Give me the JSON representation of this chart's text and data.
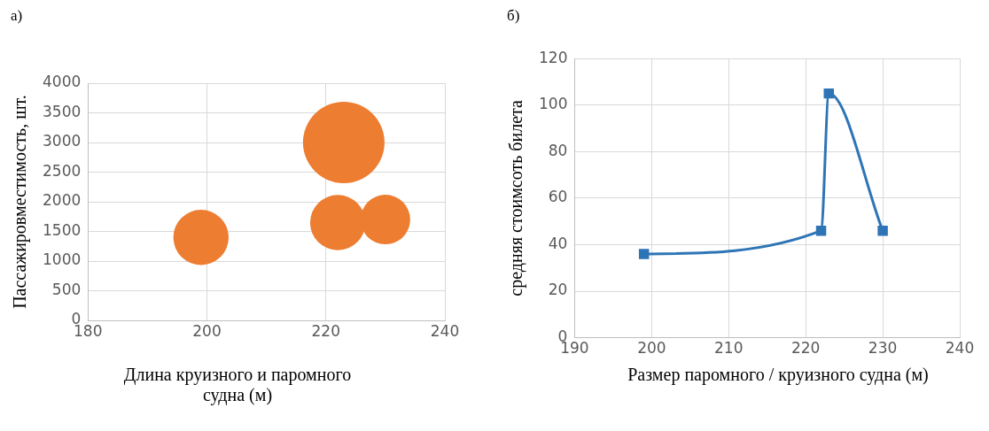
{
  "chart_data": [
    {
      "type": "bubble",
      "annotations": [
        "а)"
      ],
      "xlabel": "Длина круизного и паромного судна (м)",
      "ylabel": "Пассажировместимость, шт.",
      "x": [
        199,
        222,
        223,
        230
      ],
      "series": [
        {
          "color": "#ed7d31",
          "values": [
            1400,
            1650,
            3000,
            1700
          ],
          "sizes": [
            0.46,
            0.46,
            1,
            0.37
          ]
        }
      ],
      "xlim": [
        180,
        240
      ],
      "xticks": [
        180,
        200,
        220,
        240
      ],
      "ylim": [
        0,
        4000
      ],
      "yticks": [
        0,
        500,
        1000,
        1500,
        2000,
        2500,
        3000,
        3500,
        4000
      ],
      "grid": true,
      "legend": false
    },
    {
      "type": "line",
      "annotations": [
        "б)"
      ],
      "xlabel": "Размер паромного / круизного судна (м)",
      "ylabel": "средняя стоимсоть билета",
      "x": [
        199,
        222,
        223,
        230
      ],
      "series": [
        {
          "color": "#2e75b6",
          "values": [
            36,
            46,
            105,
            46
          ]
        }
      ],
      "xlim": [
        190,
        240
      ],
      "xticks": [
        190,
        200,
        210,
        220,
        230,
        240
      ],
      "ylim": [
        0,
        120
      ],
      "yticks": [
        0,
        20,
        40,
        60,
        80,
        100,
        120
      ],
      "grid": true,
      "legend": false,
      "marker": "square",
      "line_style": "solid"
    }
  ]
}
